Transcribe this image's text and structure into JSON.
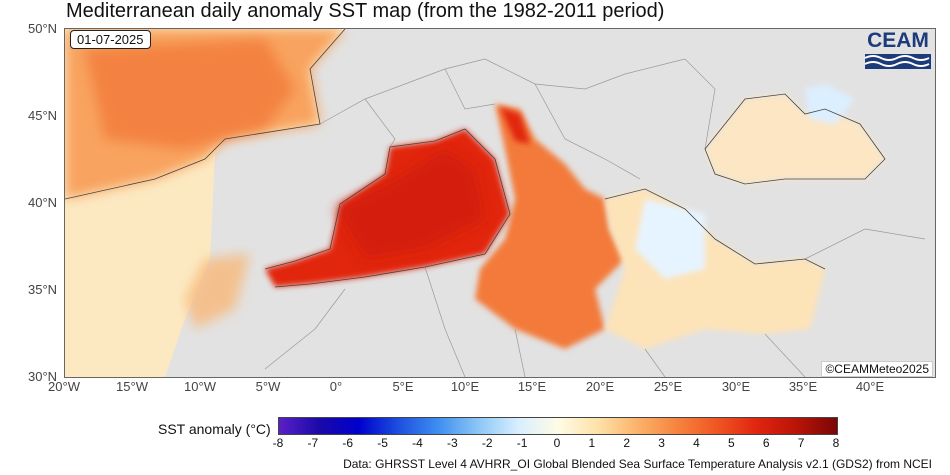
{
  "title": "Mediterranean daily anomaly SST map (from the 1982-2011 period)",
  "date": "01-07-2025",
  "logo_text": "CEAM",
  "copyright": "©CEAMMeteo2025",
  "lat_labels": [
    "50°N",
    "45°N",
    "40°N",
    "35°N",
    "30°N"
  ],
  "lon_labels": [
    "20°W",
    "15°W",
    "10°W",
    "5°W",
    "0°",
    "5°E",
    "10°E",
    "15°E",
    "20°E",
    "25°E",
    "30°E",
    "35°E",
    "40°E"
  ],
  "colorbar": {
    "title": "SST anomaly (°C)",
    "ticks": [
      "-8",
      "-7",
      "-6",
      "-5",
      "-4",
      "-3",
      "-2",
      "-1",
      "0",
      "1",
      "2",
      "3",
      "4",
      "5",
      "6",
      "7",
      "8"
    ],
    "colors": [
      "#5b1fc7",
      "#1a0aa8",
      "#0000cc",
      "#1d4fe0",
      "#3f8ff0",
      "#8cc6f5",
      "#d8efff",
      "#fffbe6",
      "#fde2a8",
      "#fbb26a",
      "#f6833d",
      "#f05522",
      "#e0240f",
      "#b81408",
      "#7a0606"
    ]
  },
  "source": "Data: GHRSST Level 4 AVHRR_OI Global Blended Sea Surface Temperature Analysis v2.1 (GDS2) from NCEI",
  "colors": {
    "land": "#e2e2e2",
    "atlantic_warm": "#f8a35e",
    "west_med_hot": "#e1260f",
    "central_med": "#f37a3a",
    "east_med": "#fde3b8",
    "aegean": "#e6f4ff",
    "black_sea": "#fce6c4"
  }
}
